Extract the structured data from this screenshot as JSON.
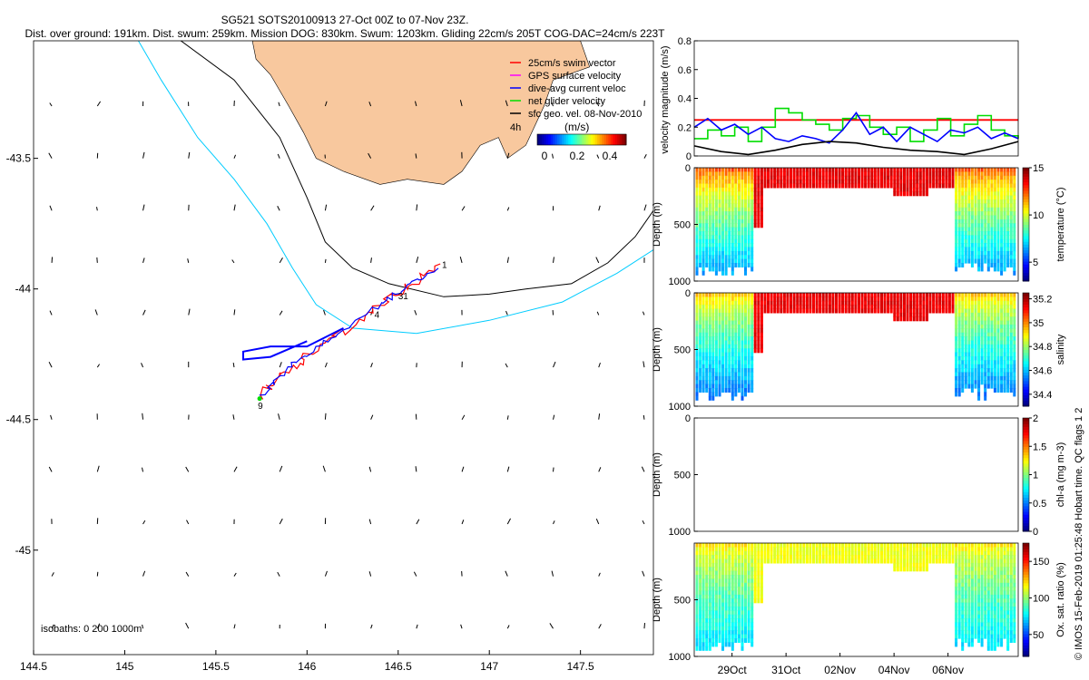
{
  "title_line1": "SG521 SOTS20100913 27-Oct 00Z to 07-Nov 23Z.",
  "title_line2": "Dist. over ground: 191km. Dist. swum: 259km. Mission DOG: 830km. Swum: 1203km. Gliding 22cm/s 205T COG-DAC=24cm/s 223T",
  "credit": "© IMOS 15-Feb-2019 01:25:48 Hobart time. QC flags 1  2",
  "colors": {
    "land": "#F8C89E",
    "red": "#FF0000",
    "blue": "#0000FF",
    "green": "#00DD00",
    "cyan": "#00CCFF",
    "black": "#000000"
  },
  "chart_data": [
    {
      "type": "map",
      "xlim": [
        144.5,
        147.9
      ],
      "ylim": [
        -45.4,
        -43.05
      ],
      "x_ticks": [
        "144.5",
        "145",
        "145.5",
        "146",
        "146.5",
        "147",
        "147.5"
      ],
      "y_ticks": [
        "-43.5",
        "-44",
        "-44.5",
        "-45"
      ],
      "legend": [
        {
          "label": "25cm/s swim vector",
          "color": "#FF0000"
        },
        {
          "label": "GPS surface velocity",
          "color": "#FF00FF"
        },
        {
          "label": "dive-avg current veloc",
          "color": "#0000FF"
        },
        {
          "label": "net glider velocity",
          "color": "#00DD00"
        },
        {
          "label": "sfc geo. vel. 08-Nov-2010",
          "color": "#000000"
        }
      ],
      "legend_note": "4h",
      "colorbar": {
        "title": "(m/s)",
        "ticks": [
          "0",
          "0.2",
          "0.4"
        ]
      },
      "isobath_label": "isobaths: 0   200  1000m",
      "track_labels": [
        {
          "text": "1",
          "lon": 146.74,
          "lat": -43.92
        },
        {
          "text": "31",
          "lon": 146.5,
          "lat": -44.04
        },
        {
          "text": "4",
          "lon": 146.37,
          "lat": -44.11
        },
        {
          "text": "9",
          "lon": 145.73,
          "lat": -44.46
        }
      ]
    },
    {
      "type": "line",
      "ylabel": "velocity magnitude (m/s)",
      "ylim": [
        0,
        0.8
      ],
      "y_ticks": [
        "0",
        "0.2",
        "0.4",
        "0.6",
        "0.8"
      ],
      "x_days": [
        0,
        12
      ],
      "series": [
        {
          "color": "#FF0000",
          "x": [
            0,
            12
          ],
          "values": [
            0.25,
            0.25
          ]
        },
        {
          "color": "#00DD00",
          "x": [
            0,
            0.5,
            1,
            1.5,
            2,
            2.5,
            3,
            3.5,
            4,
            4.5,
            5,
            5.5,
            6,
            6.5,
            7,
            7.5,
            8,
            8.5,
            9,
            9.5,
            10,
            10.5,
            11,
            11.5,
            12
          ],
          "values": [
            0.12,
            0.18,
            0.14,
            0.2,
            0.1,
            0.2,
            0.33,
            0.3,
            0.25,
            0.22,
            0.18,
            0.26,
            0.28,
            0.2,
            0.15,
            0.2,
            0.1,
            0.18,
            0.26,
            0.14,
            0.22,
            0.28,
            0.18,
            0.14,
            0.12
          ]
        },
        {
          "color": "#0000FF",
          "x": [
            0,
            0.5,
            1,
            1.5,
            2,
            2.5,
            3,
            3.5,
            4,
            4.5,
            5,
            5.5,
            6,
            6.5,
            7,
            7.5,
            8,
            8.5,
            9,
            9.5,
            10,
            10.5,
            11,
            11.5,
            12
          ],
          "values": [
            0.2,
            0.26,
            0.18,
            0.22,
            0.15,
            0.2,
            0.12,
            0.1,
            0.14,
            0.12,
            0.09,
            0.18,
            0.3,
            0.15,
            0.2,
            0.1,
            0.2,
            0.15,
            0.1,
            0.18,
            0.16,
            0.2,
            0.12,
            0.16,
            0.12
          ]
        },
        {
          "color": "#000000",
          "x": [
            0,
            1,
            2,
            3,
            4,
            5,
            6,
            7,
            8,
            9,
            10,
            11,
            12
          ],
          "values": [
            0.07,
            0.03,
            0.01,
            0.04,
            0.08,
            0.1,
            0.09,
            0.06,
            0.04,
            0.03,
            0.01,
            0.05,
            0.1
          ]
        }
      ]
    },
    {
      "type": "heatmap",
      "ylabel": "Depth (m)",
      "cblabel": "temperature (°C)",
      "ylim": [
        0,
        1000
      ],
      "y_ticks": [
        "0",
        "500",
        "1000"
      ],
      "clim": [
        3,
        15
      ],
      "cb_ticks": [
        "5",
        "10",
        "15"
      ],
      "surface_value": 12.5,
      "deep_value": 6,
      "warm_value": 13.8
    },
    {
      "type": "heatmap",
      "ylabel": "Depth (m)",
      "cblabel": "salinity",
      "ylim": [
        0,
        1000
      ],
      "y_ticks": [
        "0",
        "500",
        "1000"
      ],
      "clim": [
        34.3,
        35.25
      ],
      "cb_ticks": [
        "34.4",
        "34.6",
        "34.8",
        "35",
        "35.2"
      ],
      "surface_value": 34.95,
      "deep_value": 34.5,
      "warm_value": 35.15
    },
    {
      "type": "heatmap",
      "ylabel": "Depth (m)",
      "cblabel": "chl-a (mg m-3)",
      "ylim": [
        0,
        1000
      ],
      "y_ticks": [
        "0",
        "500",
        "1000"
      ],
      "clim": [
        0,
        2
      ],
      "cb_ticks": [
        "0",
        "0.5",
        "1",
        "1.5",
        "2"
      ],
      "empty": true
    },
    {
      "type": "heatmap",
      "ylabel": "Depth (m)",
      "cblabel": "Ox. sat. ratio (%)",
      "ylim": [
        0,
        1000
      ],
      "y_ticks": [
        "500",
        "1000"
      ],
      "clim": [
        20,
        175
      ],
      "cb_ticks": [
        "50",
        "100",
        "150"
      ],
      "surface_value": 120,
      "deep_value": 70,
      "warm_value": 115
    },
    {
      "type": "axis",
      "x_ticks": [
        "29Oct",
        "31Oct",
        "02Nov",
        "04Nov",
        "06Nov"
      ]
    }
  ]
}
